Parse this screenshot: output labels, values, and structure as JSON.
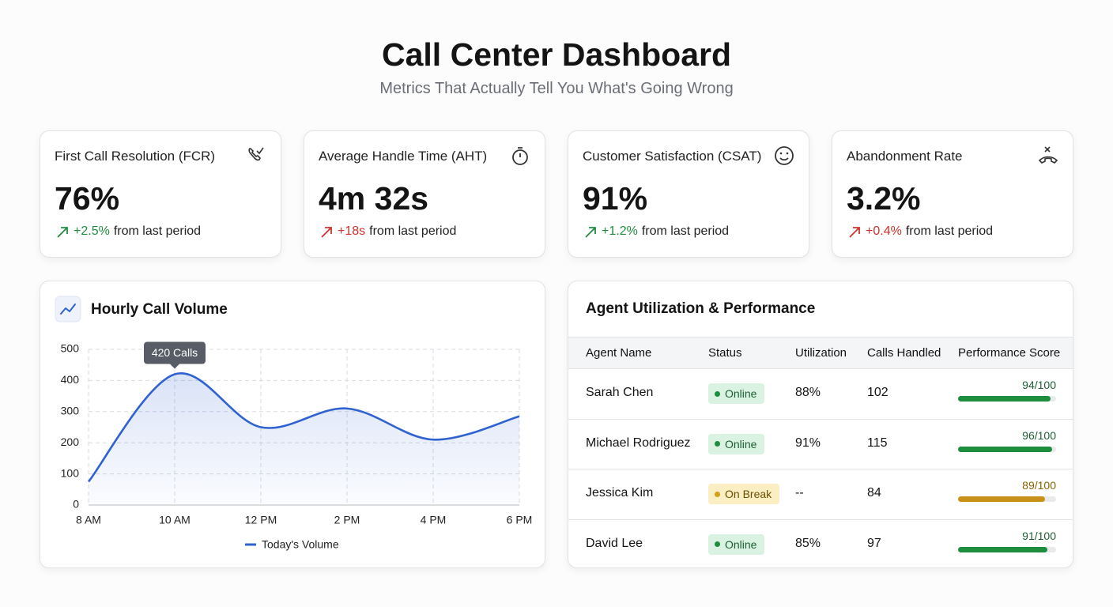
{
  "header": {
    "title": "Call Center Dashboard",
    "subtitle": "Metrics That Actually Tell You What's Going Wrong"
  },
  "kpis": [
    {
      "label": "First Call Resolution (FCR)",
      "value": "76%",
      "change": "+2.5%",
      "note": "from last period",
      "color": "#1e8e3e"
    },
    {
      "label": "Average Handle Time (AHT)",
      "value": "4m 32s",
      "change": "+18s",
      "note": "from last period",
      "color": "#d0312d"
    },
    {
      "label": "Customer Satisfaction (CSAT)",
      "value": "91%",
      "change": "+1.2%",
      "note": "from last period",
      "color": "#1e8e3e"
    },
    {
      "label": "Abandonment Rate",
      "value": "3.2%",
      "change": "+0.4%",
      "note": "from last period",
      "color": "#d0312d"
    }
  ],
  "chart_data": {
    "type": "line",
    "title": "Hourly Call Volume",
    "categories": [
      "8 AM",
      "10 AM",
      "12 PM",
      "2 PM",
      "4 PM",
      "6 PM"
    ],
    "series": [
      {
        "name": "Today's Volume",
        "color": "#2f62d0",
        "values": [
          75,
          420,
          250,
          310,
          210,
          285
        ],
        "value_labels": [
          null,
          "420 Calls",
          null,
          null,
          null,
          null
        ]
      }
    ],
    "ylim": [
      0,
      500
    ],
    "yticks": [
      0,
      100,
      200,
      300,
      400,
      500
    ],
    "grid": true
  },
  "table": {
    "title": "Agent Utilization & Performance",
    "columns": [
      "Agent Name",
      "Status",
      "Utilization",
      "Calls Handled",
      "Performance Score"
    ],
    "score_max": 100,
    "rows": [
      {
        "name": "Sarah Chen",
        "status": "Online",
        "utilization": "88%",
        "calls": 102,
        "score": 94,
        "score_label": "94/100",
        "tone": "green"
      },
      {
        "name": "Michael Rodriguez",
        "status": "Online",
        "utilization": "91%",
        "calls": 115,
        "score": 96,
        "score_label": "96/100",
        "tone": "green"
      },
      {
        "name": "Jessica Kim",
        "status": "On Break",
        "utilization": "--",
        "calls": 84,
        "score": 89,
        "score_label": "89/100",
        "tone": "amber"
      },
      {
        "name": "David Lee",
        "status": "Online",
        "utilization": "85%",
        "calls": 97,
        "score": 91,
        "score_label": "91/100",
        "tone": "green"
      }
    ]
  }
}
